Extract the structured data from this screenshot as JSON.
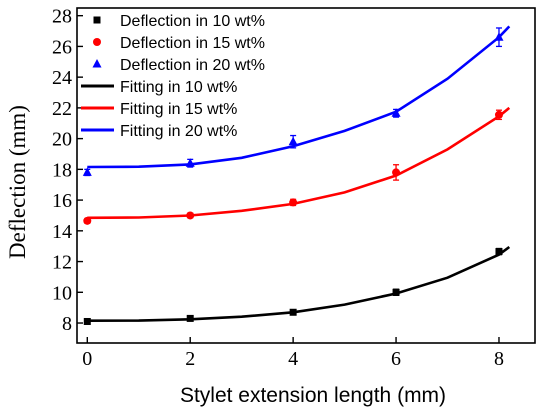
{
  "chart_data": {
    "type": "scatter",
    "xlabel": "Stylet extension length (mm)",
    "ylabel": "Deflection (mm)",
    "xlim": [
      -0.2,
      8.7
    ],
    "ylim": [
      6.7,
      28.5
    ],
    "xticks": [
      0,
      2,
      4,
      6,
      8
    ],
    "yticks": [
      8,
      10,
      12,
      14,
      16,
      18,
      20,
      22,
      24,
      26,
      28
    ],
    "legend_position": "top-left",
    "grid": false,
    "series": [
      {
        "name": "Deflection in 10 wt%",
        "kind": "points",
        "marker": "square",
        "color": "#000000",
        "x": [
          0,
          2,
          4,
          6,
          8
        ],
        "y": [
          8.1,
          8.3,
          8.7,
          10.0,
          12.65
        ],
        "err": [
          0.15,
          0.15,
          0.15,
          0.2,
          0.2
        ]
      },
      {
        "name": "Deflection in 15 wt%",
        "kind": "points",
        "marker": "circle",
        "color": "#ff0000",
        "x": [
          0,
          2,
          4,
          6,
          8
        ],
        "y": [
          14.65,
          15.0,
          15.85,
          17.8,
          21.55
        ],
        "err": [
          0.15,
          0.15,
          0.2,
          0.5,
          0.3
        ]
      },
      {
        "name": "Deflection in 20 wt%",
        "kind": "points",
        "marker": "triangle",
        "color": "#0000ff",
        "x": [
          0,
          2,
          4,
          6,
          8
        ],
        "y": [
          17.8,
          18.4,
          19.8,
          21.65,
          26.6
        ],
        "err": [
          0.2,
          0.25,
          0.4,
          0.25,
          0.6
        ]
      },
      {
        "name": "Fitting in 10 wt%",
        "kind": "line",
        "color": "#000000",
        "x": [
          0,
          1,
          2,
          3,
          4,
          5,
          6,
          7,
          8,
          8.2
        ],
        "y": [
          8.15,
          8.16,
          8.24,
          8.41,
          8.7,
          9.2,
          9.92,
          10.95,
          12.45,
          12.95
        ]
      },
      {
        "name": "Fitting in 15 wt%",
        "kind": "line",
        "color": "#ff0000",
        "x": [
          0,
          1,
          2,
          3,
          4,
          5,
          6,
          7,
          8,
          8.2
        ],
        "y": [
          14.85,
          14.87,
          15.0,
          15.3,
          15.75,
          16.5,
          17.6,
          19.3,
          21.45,
          22.0
        ]
      },
      {
        "name": "Fitting in 20 wt%",
        "kind": "line",
        "color": "#0000ff",
        "x": [
          0,
          1,
          2,
          3,
          4,
          5,
          6,
          7,
          8,
          8.2
        ],
        "y": [
          18.15,
          18.17,
          18.32,
          18.75,
          19.5,
          20.5,
          21.75,
          23.9,
          26.6,
          27.3
        ]
      }
    ]
  }
}
